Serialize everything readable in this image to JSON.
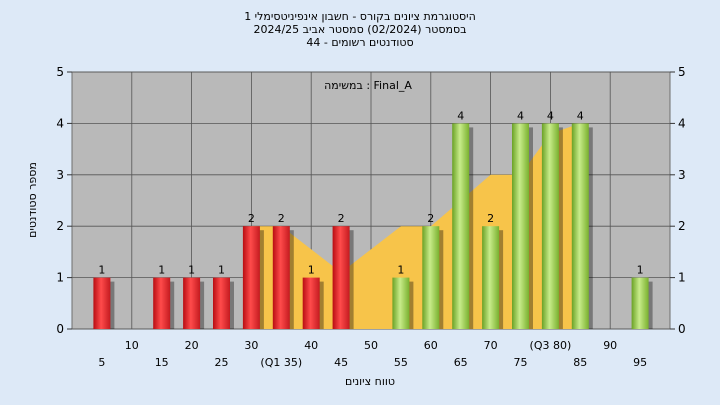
{
  "chart_data": {
    "type": "bar",
    "title_lines": [
      "היסטוגרמת ציונים בקורס - חשבון אינפיניטסימלי 1",
      "בסמסטר  (02/2024)  סמסטר אביב 2024/25",
      "44 - סטודנטים רשומים"
    ],
    "annotation": "במשימה : Final_A",
    "xlabel": "טווח ציונים",
    "ylabel": "מספר סטודנטים",
    "ylim": [
      0,
      5
    ],
    "yticks": [
      0,
      1,
      2,
      3,
      4,
      5
    ],
    "xlim": [
      0,
      100
    ],
    "grid": true,
    "x_labels_row1": [
      {
        "x": 10,
        "label": "10"
      },
      {
        "x": 20,
        "label": "20"
      },
      {
        "x": 30,
        "label": "30"
      },
      {
        "x": 40,
        "label": "40"
      },
      {
        "x": 50,
        "label": "50"
      },
      {
        "x": 60,
        "label": "60"
      },
      {
        "x": 70,
        "label": "70"
      },
      {
        "x": 80,
        "label": "(Q3 80)"
      },
      {
        "x": 90,
        "label": "90"
      }
    ],
    "x_labels_row2": [
      {
        "x": 5,
        "label": "5"
      },
      {
        "x": 15,
        "label": "15"
      },
      {
        "x": 25,
        "label": "25"
      },
      {
        "x": 35,
        "label": "(Q1 35)"
      },
      {
        "x": 45,
        "label": "45"
      },
      {
        "x": 55,
        "label": "55"
      },
      {
        "x": 65,
        "label": "65"
      },
      {
        "x": 75,
        "label": "75"
      },
      {
        "x": 85,
        "label": "85"
      },
      {
        "x": 95,
        "label": "95"
      }
    ],
    "bars": [
      {
        "x": 5,
        "value": 1,
        "color": "red"
      },
      {
        "x": 15,
        "value": 1,
        "color": "red"
      },
      {
        "x": 20,
        "value": 1,
        "color": "red"
      },
      {
        "x": 25,
        "value": 1,
        "color": "red"
      },
      {
        "x": 30,
        "value": 2,
        "color": "red"
      },
      {
        "x": 35,
        "value": 2,
        "color": "red"
      },
      {
        "x": 40,
        "value": 1,
        "color": "red"
      },
      {
        "x": 45,
        "value": 2,
        "color": "red"
      },
      {
        "x": 55,
        "value": 1,
        "color": "green"
      },
      {
        "x": 60,
        "value": 2,
        "color": "green"
      },
      {
        "x": 65,
        "value": 4,
        "color": "green"
      },
      {
        "x": 70,
        "value": 2,
        "color": "green"
      },
      {
        "x": 75,
        "value": 4,
        "color": "green"
      },
      {
        "x": 80,
        "value": 4,
        "color": "green"
      },
      {
        "x": 85,
        "value": 4,
        "color": "green"
      },
      {
        "x": 95,
        "value": 1,
        "color": "green"
      }
    ],
    "area": [
      {
        "x": 30,
        "y": 2
      },
      {
        "x": 35,
        "y": 2
      },
      {
        "x": 45,
        "y": 1.1
      },
      {
        "x": 55,
        "y": 2
      },
      {
        "x": 60,
        "y": 2
      },
      {
        "x": 70,
        "y": 3
      },
      {
        "x": 75,
        "y": 3
      },
      {
        "x": 80,
        "y": 3.8
      },
      {
        "x": 85,
        "y": 4
      }
    ],
    "colors": {
      "background": "#dde9f7",
      "plot": "#b9b9b9",
      "area": "#f7c44a",
      "red": "#e8242a",
      "green": "#8ec63f"
    }
  }
}
